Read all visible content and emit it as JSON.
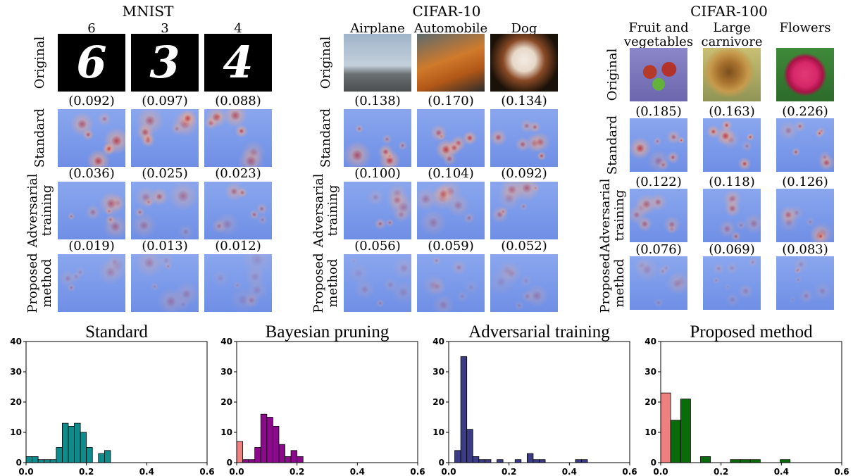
{
  "datasets": [
    {
      "title": "MNIST",
      "columns": [
        "6",
        "3",
        "4"
      ],
      "rows": [
        {
          "label": "Original"
        },
        {
          "label": "Standard",
          "values": [
            "(0.092)",
            "(0.097)",
            "(0.088)"
          ]
        },
        {
          "label": "Adversarial\ntraining",
          "values": [
            "(0.036)",
            "(0.025)",
            "(0.023)"
          ]
        },
        {
          "label": "Proposed\nmethod",
          "values": [
            "(0.019)",
            "(0.013)",
            "(0.012)"
          ]
        }
      ]
    },
    {
      "title": "CIFAR-10",
      "columns": [
        "Airplane",
        "Automobile",
        "Dog"
      ],
      "rows": [
        {
          "label": "Original"
        },
        {
          "label": "Standard",
          "values": [
            "(0.138)",
            "(0.170)",
            "(0.134)"
          ]
        },
        {
          "label": "Adversarial\ntraining",
          "values": [
            "(0.100)",
            "(0.104)",
            "(0.092)"
          ]
        },
        {
          "label": "Proposed\nmethod",
          "values": [
            "(0.056)",
            "(0.059)",
            "(0.052)"
          ]
        }
      ]
    },
    {
      "title": "CIFAR-100",
      "columns": [
        "Fruit and\nvegetables",
        "Large\ncarnivore",
        "Flowers"
      ],
      "rows": [
        {
          "label": "Original"
        },
        {
          "label": "Standard",
          "values": [
            "(0.185)",
            "(0.163)",
            "(0.226)"
          ]
        },
        {
          "label": "Adversarial\ntraining",
          "values": [
            "(0.122)",
            "(0.118)",
            "(0.126)"
          ]
        },
        {
          "label": "Proposed\nmethod",
          "values": [
            "(0.076)",
            "(0.069)",
            "(0.083)"
          ]
        }
      ]
    }
  ],
  "chart_data": [
    {
      "type": "bar",
      "title": "Standard",
      "xlim": [
        0,
        0.6
      ],
      "ylim": [
        0,
        40
      ],
      "xticks": [
        "0.0",
        "0.2",
        "0.4",
        "0.6"
      ],
      "yticks": [
        "0",
        "10",
        "20",
        "30",
        "40"
      ],
      "bin_width": 0.02,
      "color": "#0e8b8b",
      "bins": [
        {
          "x": 0.0,
          "y": 2
        },
        {
          "x": 0.02,
          "y": 2
        },
        {
          "x": 0.04,
          "y": 1
        },
        {
          "x": 0.06,
          "y": 1
        },
        {
          "x": 0.08,
          "y": 1
        },
        {
          "x": 0.1,
          "y": 5
        },
        {
          "x": 0.12,
          "y": 13
        },
        {
          "x": 0.14,
          "y": 12
        },
        {
          "x": 0.16,
          "y": 13
        },
        {
          "x": 0.18,
          "y": 10
        },
        {
          "x": 0.2,
          "y": 5
        },
        {
          "x": 0.24,
          "y": 3
        },
        {
          "x": 0.26,
          "y": 4
        }
      ]
    },
    {
      "type": "bar",
      "title": "Bayesian pruning",
      "xlim": [
        0,
        0.6
      ],
      "ylim": [
        0,
        40
      ],
      "xticks": [
        "0.0",
        "0.2",
        "0.4",
        "0.6"
      ],
      "yticks": [
        "0",
        "10",
        "20",
        "30",
        "40"
      ],
      "bin_width": 0.02,
      "color": "#8b0a8b",
      "bins": [
        {
          "x": 0.0,
          "y": 7,
          "color": "#f08080"
        },
        {
          "x": 0.02,
          "y": 1
        },
        {
          "x": 0.04,
          "y": 1
        },
        {
          "x": 0.06,
          "y": 5
        },
        {
          "x": 0.08,
          "y": 16
        },
        {
          "x": 0.1,
          "y": 15
        },
        {
          "x": 0.12,
          "y": 12
        },
        {
          "x": 0.14,
          "y": 6
        },
        {
          "x": 0.16,
          "y": 2
        },
        {
          "x": 0.18,
          "y": 4
        },
        {
          "x": 0.2,
          "y": 2
        }
      ]
    },
    {
      "type": "bar",
      "title": "Adversarial training",
      "xlim": [
        0,
        0.6
      ],
      "ylim": [
        0,
        40
      ],
      "xticks": [
        "0.0",
        "0.2",
        "0.4",
        "0.6"
      ],
      "yticks": [
        "0",
        "10",
        "20",
        "30",
        "40"
      ],
      "bin_width": 0.02,
      "color": "#3b3b86",
      "bins": [
        {
          "x": 0.02,
          "y": 4
        },
        {
          "x": 0.04,
          "y": 35
        },
        {
          "x": 0.06,
          "y": 11
        },
        {
          "x": 0.08,
          "y": 2
        },
        {
          "x": 0.1,
          "y": 1
        },
        {
          "x": 0.12,
          "y": 1
        },
        {
          "x": 0.16,
          "y": 1
        },
        {
          "x": 0.22,
          "y": 1
        },
        {
          "x": 0.26,
          "y": 3
        },
        {
          "x": 0.28,
          "y": 1
        },
        {
          "x": 0.3,
          "y": 1
        },
        {
          "x": 0.42,
          "y": 1
        },
        {
          "x": 0.44,
          "y": 1
        }
      ]
    },
    {
      "type": "bar",
      "title": "Proposed method",
      "xlim": [
        0,
        0.6
      ],
      "ylim": [
        0,
        40
      ],
      "xticks": [
        "0.0",
        "0.2",
        "0.4",
        "0.6"
      ],
      "yticks": [
        "0",
        "10",
        "20",
        "30",
        "40"
      ],
      "bin_width": 0.033,
      "color": "#0a6b0a",
      "bins": [
        {
          "x": 0.0,
          "y": 23,
          "color": "#f08080"
        },
        {
          "x": 0.033,
          "y": 14
        },
        {
          "x": 0.066,
          "y": 21
        },
        {
          "x": 0.132,
          "y": 2
        },
        {
          "x": 0.231,
          "y": 1
        },
        {
          "x": 0.264,
          "y": 1
        },
        {
          "x": 0.297,
          "y": 1
        },
        {
          "x": 0.396,
          "y": 1
        }
      ]
    }
  ]
}
